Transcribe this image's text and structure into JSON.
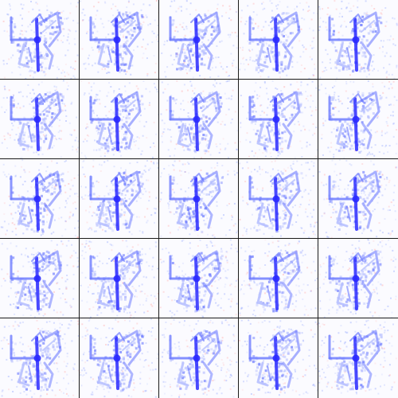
{
  "grid": {
    "rows": 5,
    "columns": 5,
    "tile_count": 25
  },
  "tile": {
    "content": "noisy-blue-heatmap-figure",
    "colors": {
      "background": "#ffffff",
      "noise_blue": "#9fb0ff",
      "noise_red": "#ffb0b0",
      "figure_light": "#b7c0ff",
      "figure_mid": "#6f7dff",
      "figure_dark": "#2a2aff",
      "grid_line": "#1a1a1a"
    }
  }
}
